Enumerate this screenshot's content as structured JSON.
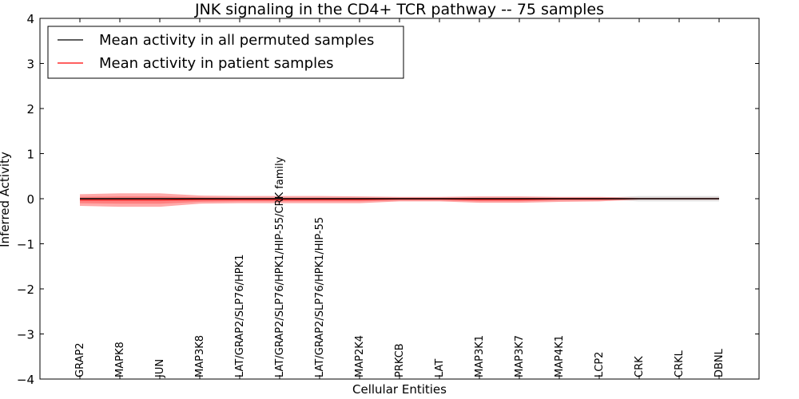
{
  "chart_data": {
    "type": "line",
    "title": "JNK signaling in the CD4+ TCR pathway -- 75 samples",
    "xlabel": "Cellular Entities",
    "ylabel": "Inferred Activity",
    "ylim": [
      -4,
      4
    ],
    "yticks": [
      -4,
      -3,
      -2,
      -1,
      0,
      1,
      2,
      3,
      4
    ],
    "ytick_labels": [
      "−4",
      "−3",
      "−2",
      "−1",
      "0",
      "1",
      "2",
      "3",
      "4"
    ],
    "categories": [
      "GRAP2",
      "MAPK8",
      "JUN",
      "MAP3K8",
      "LAT/GRAP2/SLP76/HPK1",
      "LAT/GRAP2/SLP76/HPK1/HIP-55/CRK family",
      "LAT/GRAP2/SLP76/HPK1/HIP-55",
      "MAP2K4",
      "PRKCB",
      "LAT",
      "MAP3K1",
      "MAP3K7",
      "MAP4K1",
      "LCP2",
      "CRK",
      "CRKL",
      "DBNL"
    ],
    "legend": {
      "placement": "top-left",
      "entries": [
        {
          "label": "Mean activity in all permuted samples",
          "color": "#000000"
        },
        {
          "label": "Mean activity in patient samples",
          "color": "#ff0000"
        }
      ]
    },
    "series": [
      {
        "name": "Mean activity in all permuted samples",
        "color": "#000000",
        "values": [
          0,
          0,
          0,
          0,
          0,
          0,
          0,
          0,
          0,
          0,
          0,
          0,
          0,
          0,
          0,
          0,
          0
        ],
        "band_upper": [
          0.02,
          0.02,
          0.02,
          0.02,
          0.02,
          0.02,
          0.02,
          0.02,
          0.02,
          0.02,
          0.02,
          0.02,
          0.02,
          0.02,
          0.06,
          0.06,
          0.06
        ],
        "band_lower": [
          -0.02,
          -0.02,
          -0.02,
          -0.02,
          -0.02,
          -0.02,
          -0.02,
          -0.02,
          -0.02,
          -0.02,
          -0.02,
          -0.02,
          -0.02,
          -0.02,
          -0.06,
          -0.06,
          -0.06
        ],
        "band_color": "#bbbbbb"
      },
      {
        "name": "Mean activity in patient samples",
        "color": "#ff0000",
        "values": [
          -0.03,
          -0.03,
          -0.03,
          -0.02,
          -0.02,
          -0.02,
          -0.02,
          -0.02,
          -0.01,
          -0.01,
          -0.02,
          -0.02,
          -0.01,
          -0.01,
          0,
          0,
          0
        ],
        "band_upper": [
          0.1,
          0.12,
          0.12,
          0.07,
          0.06,
          0.06,
          0.06,
          0.05,
          0.04,
          0.04,
          0.05,
          0.05,
          0.04,
          0.04,
          0.02,
          0.02,
          0.02
        ],
        "band_lower": [
          -0.16,
          -0.18,
          -0.18,
          -0.11,
          -0.1,
          -0.1,
          -0.1,
          -0.1,
          -0.06,
          -0.06,
          -0.09,
          -0.09,
          -0.07,
          -0.06,
          -0.02,
          -0.02,
          -0.02
        ],
        "inner_upper": [
          0.04,
          0.05,
          0.05,
          0.03,
          0.02,
          0.02,
          0.02,
          0.02,
          0.02,
          0.02,
          0.02,
          0.02,
          0.02,
          0.02,
          0.01,
          0.01,
          0.01
        ],
        "inner_lower": [
          -0.1,
          -0.11,
          -0.11,
          -0.07,
          -0.06,
          -0.06,
          -0.06,
          -0.06,
          -0.04,
          -0.04,
          -0.06,
          -0.06,
          -0.04,
          -0.04,
          -0.01,
          -0.01,
          -0.01
        ],
        "band_color": "#ff5555"
      }
    ]
  }
}
